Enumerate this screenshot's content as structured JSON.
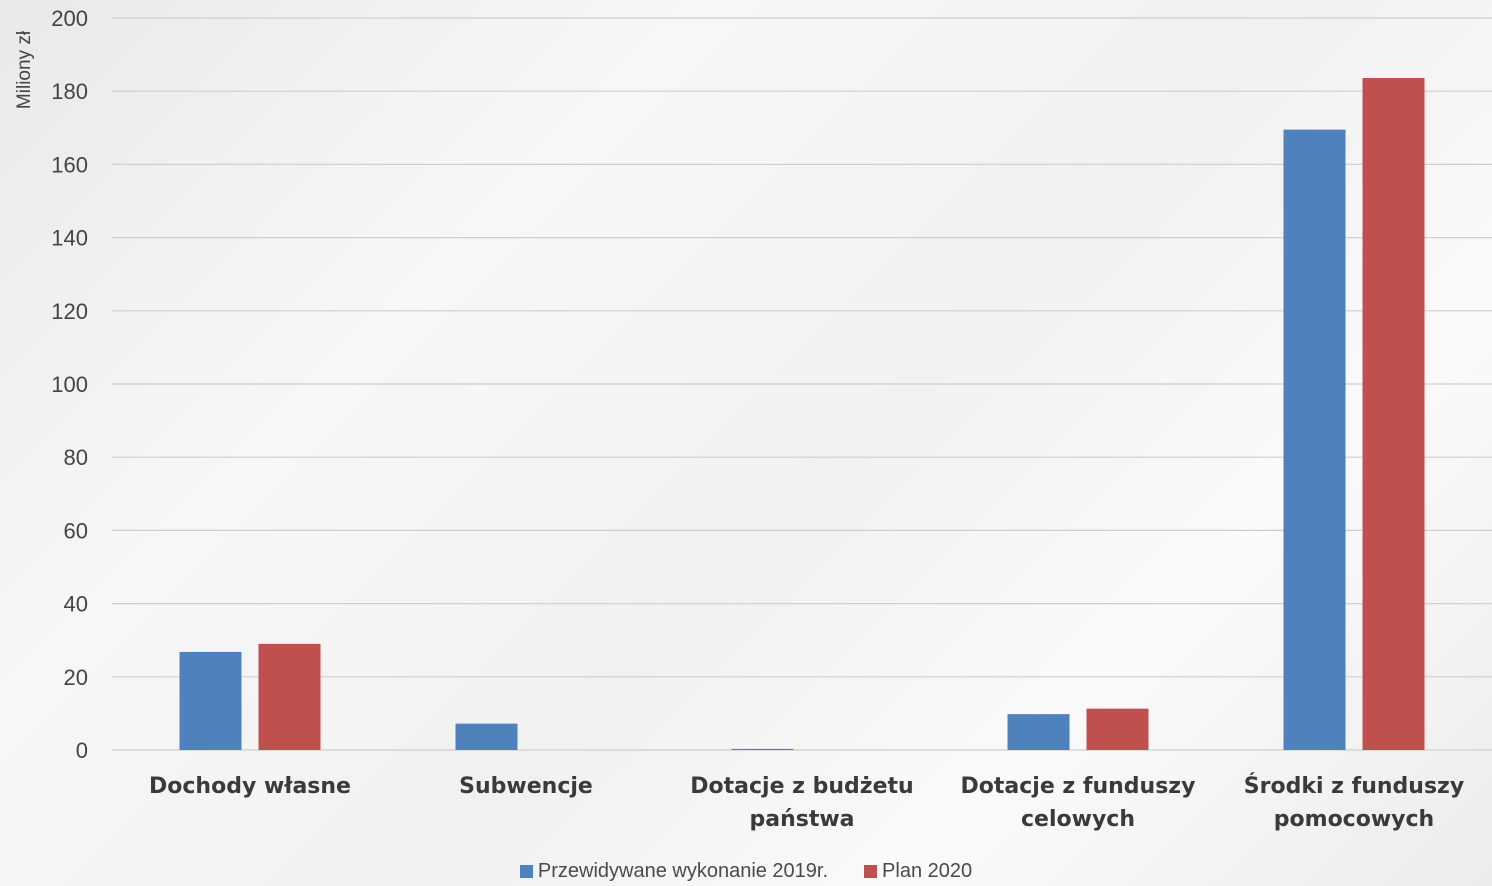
{
  "chart_data": {
    "type": "bar",
    "ylabel": "Miliony zł",
    "ylim": [
      0,
      200
    ],
    "yticks": [
      "0",
      "20",
      "40",
      "60",
      "80",
      "100",
      "120",
      "140",
      "160",
      "180",
      "200"
    ],
    "categories": [
      [
        "Dochody własne"
      ],
      [
        "Subwencje"
      ],
      [
        "Dotacje z budżetu",
        "państwa"
      ],
      [
        "Dotacje z funduszy",
        "celowych"
      ],
      [
        "Środki z funduszy",
        "pomocowych"
      ]
    ],
    "series": [
      {
        "name": "Przewidywane wykonanie 2019r.",
        "color": "#4f81bd",
        "values": [
          26.8,
          7.2,
          0.3,
          9.8,
          169.5
        ]
      },
      {
        "name": "Plan 2020",
        "color": "#c0504d",
        "values": [
          29.0,
          0,
          0,
          11.3,
          183.6
        ]
      }
    ],
    "grid": true,
    "legend_position": "bottom"
  }
}
